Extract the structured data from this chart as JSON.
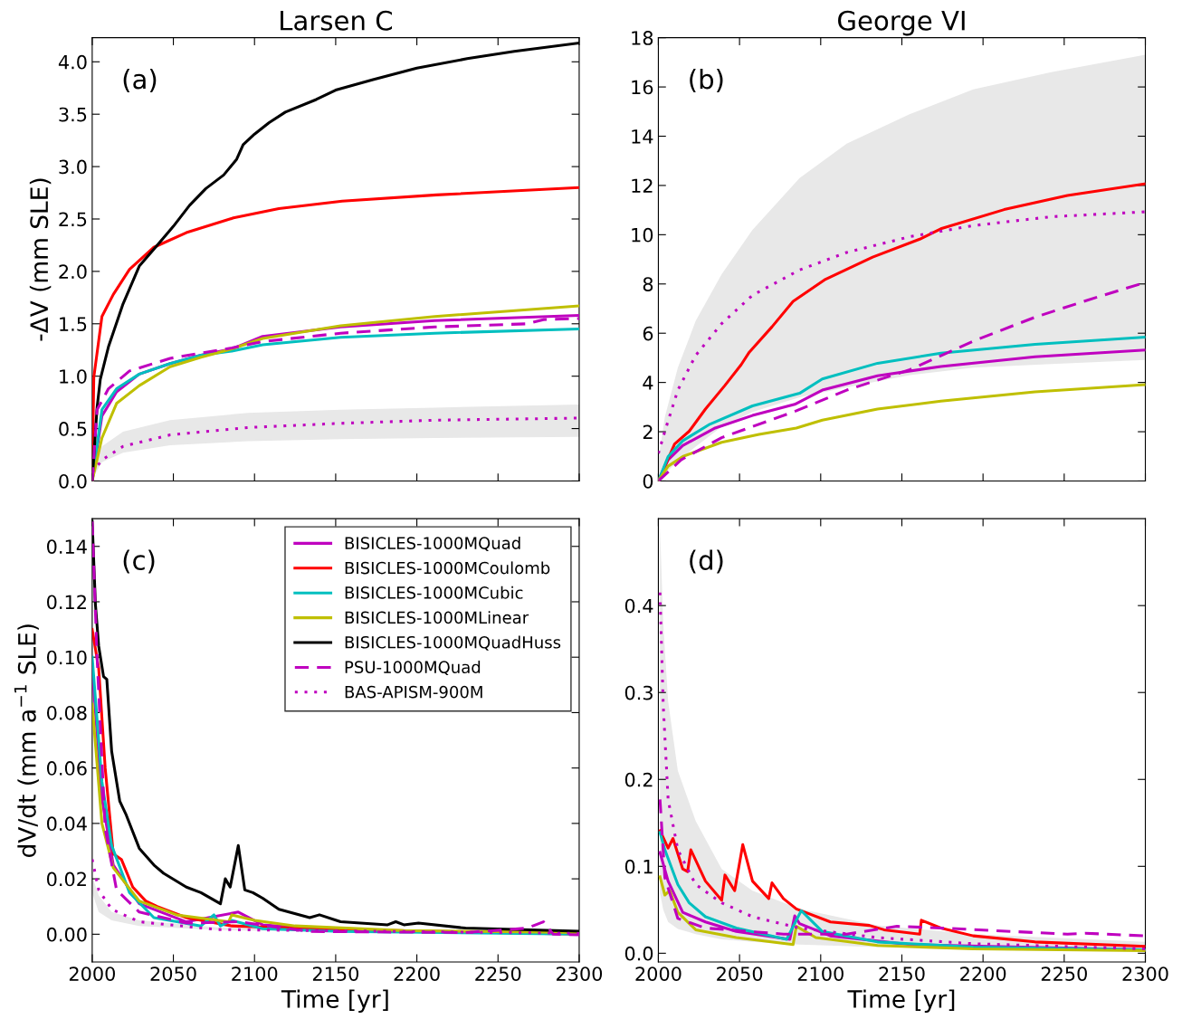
{
  "chart_data": [
    {
      "type": "line",
      "title": "Larsen C",
      "ylabel": "-ΔV (mm SLE)",
      "annotations": [
        "(a)"
      ],
      "xlim": [
        2000,
        2300
      ],
      "xticks": [
        {
          "value": 2000,
          "label": null
        },
        {
          "value": 2050,
          "label": null
        },
        {
          "value": 2100,
          "label": null
        },
        {
          "value": 2150,
          "label": null
        },
        {
          "value": 2200,
          "label": null
        },
        {
          "value": 2250,
          "label": null
        },
        {
          "value": 2300,
          "label": null
        }
      ],
      "ylim": [
        0,
        4.23
      ],
      "yticks": [
        {
          "value": 0,
          "label": "0.0"
        },
        0.5,
        {
          "value": 1,
          "label": "1.0"
        },
        1.5,
        {
          "value": 2,
          "label": "2.0"
        },
        2.5,
        {
          "value": 3,
          "label": "3.0"
        },
        3.5,
        {
          "value": 4,
          "label": "4.0"
        }
      ],
      "tick_labels": "y",
      "grid": false,
      "legend": false,
      "series": [
        {
          "color": "#bf00bf",
          "line_style": "solid",
          "x": [
            2000,
            2006,
            2015,
            2029,
            2048,
            2067,
            2086,
            2105,
            2153,
            2211,
            2300
          ],
          "values": [
            0,
            0.62,
            0.85,
            1.02,
            1.12,
            1.2,
            1.26,
            1.38,
            1.47,
            1.53,
            1.58
          ]
        },
        {
          "color": "#ff0000",
          "line_style": "solid",
          "x": [
            2000,
            2001,
            2006,
            2013,
            2023,
            2038,
            2058,
            2087,
            2115,
            2154,
            2212,
            2300
          ],
          "values": [
            0,
            0.99,
            1.57,
            1.78,
            2.02,
            2.23,
            2.37,
            2.51,
            2.6,
            2.67,
            2.73,
            2.8
          ]
        },
        {
          "color": "#00bfbf",
          "line_style": "solid",
          "x": [
            2000,
            2006,
            2015,
            2029,
            2048,
            2067,
            2086,
            2105,
            2153,
            2211,
            2300
          ],
          "values": [
            0,
            0.68,
            0.88,
            1.02,
            1.12,
            1.2,
            1.24,
            1.3,
            1.37,
            1.41,
            1.45
          ]
        },
        {
          "color": "#bfbf00",
          "line_style": "solid",
          "x": [
            2000,
            2006,
            2015,
            2029,
            2048,
            2067,
            2086,
            2105,
            2153,
            2211,
            2300
          ],
          "values": [
            0,
            0.41,
            0.74,
            0.91,
            1.09,
            1.18,
            1.26,
            1.36,
            1.48,
            1.57,
            1.67
          ]
        },
        {
          "color": "#000000",
          "line_style": "solid",
          "x": [
            2000,
            2003,
            2005,
            2010,
            2019,
            2029,
            2039,
            2050,
            2060,
            2070,
            2081,
            2089,
            2093,
            2100,
            2109,
            2119,
            2138,
            2150,
            2173,
            2200,
            2231,
            2260,
            2300
          ],
          "values": [
            0,
            0.7,
            0.97,
            1.28,
            1.69,
            2.05,
            2.23,
            2.43,
            2.63,
            2.79,
            2.92,
            3.07,
            3.21,
            3.31,
            3.42,
            3.52,
            3.64,
            3.73,
            3.83,
            3.94,
            4.03,
            4.1,
            4.18
          ]
        },
        {
          "color": "#bf00bf",
          "line_style": "dashed",
          "x": [
            2000,
            2003,
            2010,
            2023,
            2048,
            2086,
            2105,
            2153,
            2211,
            2268,
            2278,
            2300
          ],
          "values": [
            0,
            0.68,
            0.88,
            1.05,
            1.17,
            1.27,
            1.33,
            1.41,
            1.47,
            1.5,
            1.54,
            1.55
          ]
        },
        {
          "color": "#bf00bf",
          "line_style": "dotted",
          "x": [
            2000,
            2006,
            2019,
            2048,
            2096,
            2153,
            2211,
            2300
          ],
          "values": [
            0.08,
            0.2,
            0.33,
            0.44,
            0.51,
            0.55,
            0.58,
            0.6
          ],
          "lower": [
            0.02,
            0.18,
            0.27,
            0.34,
            0.38,
            0.4,
            0.41,
            0.42
          ],
          "upper": [
            0.05,
            0.33,
            0.47,
            0.58,
            0.65,
            0.68,
            0.7,
            0.73
          ]
        }
      ]
    },
    {
      "type": "line",
      "title": "George VI",
      "annotations": [
        "(b)"
      ],
      "xlim": [
        2000,
        2300
      ],
      "xticks": [
        {
          "value": 2000,
          "label": null
        },
        {
          "value": 2050,
          "label": null
        },
        {
          "value": 2100,
          "label": null
        },
        {
          "value": 2150,
          "label": null
        },
        {
          "value": 2200,
          "label": null
        },
        {
          "value": 2250,
          "label": null
        },
        {
          "value": 2300,
          "label": null
        }
      ],
      "ylim": [
        0,
        18
      ],
      "yticks": [
        0,
        2,
        4,
        6,
        8,
        10,
        12,
        14,
        16,
        18
      ],
      "tick_labels": "y",
      "grid": false,
      "legend": false,
      "series": [
        {
          "color": "#bf00bf",
          "line_style": "solid",
          "x": [
            2000,
            2006,
            2015,
            2035,
            2058,
            2084,
            2101,
            2135,
            2174,
            2232,
            2300
          ],
          "values": [
            0,
            0.86,
            1.44,
            2.15,
            2.66,
            3.11,
            3.69,
            4.27,
            4.65,
            5.04,
            5.32
          ]
        },
        {
          "color": "#ff0000",
          "line_style": "solid",
          "x": [
            2000,
            2010,
            2019,
            2029,
            2041,
            2051,
            2056,
            2070,
            2083,
            2103,
            2132,
            2161,
            2174,
            2213,
            2252,
            2300
          ],
          "values": [
            0,
            1.5,
            2.02,
            2.92,
            3.88,
            4.72,
            5.23,
            6.26,
            7.29,
            8.19,
            9.09,
            9.82,
            10.24,
            11.02,
            11.59,
            12.07
          ]
        },
        {
          "color": "#00bfbf",
          "line_style": "solid",
          "x": [
            2000,
            2006,
            2015,
            2031,
            2058,
            2087,
            2101,
            2135,
            2174,
            2232,
            2300
          ],
          "values": [
            0,
            0.99,
            1.63,
            2.28,
            3.05,
            3.56,
            4.14,
            4.78,
            5.19,
            5.55,
            5.84
          ]
        },
        {
          "color": "#bfbf00",
          "line_style": "solid",
          "x": [
            2000,
            2006,
            2015,
            2039,
            2062,
            2085,
            2101,
            2135,
            2174,
            2232,
            2300
          ],
          "values": [
            0,
            0.6,
            0.99,
            1.57,
            1.89,
            2.15,
            2.47,
            2.92,
            3.24,
            3.62,
            3.91
          ]
        },
        {
          "color": "#bf00bf",
          "line_style": "dashed",
          "x": [
            2000,
            2014,
            2039,
            2085,
            2116,
            2155,
            2194,
            2232,
            2271,
            2300
          ],
          "values": [
            0,
            0.86,
            1.76,
            2.85,
            3.69,
            4.52,
            5.68,
            6.65,
            7.48,
            8.06
          ]
        },
        {
          "color": "#bf00bf",
          "line_style": "dotted",
          "x": [
            2000,
            2004,
            2012,
            2023,
            2039,
            2058,
            2087,
            2116,
            2155,
            2194,
            2242,
            2300
          ],
          "values": [
            1.12,
            2.02,
            3.69,
            5.1,
            6.39,
            7.54,
            8.57,
            9.28,
            9.92,
            10.37,
            10.73,
            10.93
          ],
          "lower": [
            0,
            0.3,
            0.8,
            1.4,
            2.2,
            2.8,
            3.4,
            3.8,
            4.3,
            4.6,
            4.75,
            4.91
          ],
          "upper": [
            0.86,
            2.6,
            4.6,
            6.5,
            8.4,
            10.2,
            12.3,
            13.7,
            14.9,
            15.9,
            16.6,
            17.31
          ]
        }
      ]
    },
    {
      "type": "line",
      "xlabel": "Time [yr]",
      "ylabel": "dV/dt (mm a$^{−1}$ SLE)",
      "annotations": [
        "(c)"
      ],
      "xlim": [
        2000,
        2300
      ],
      "xticks": [
        2000,
        2050,
        2100,
        2150,
        2200,
        2250,
        2300
      ],
      "ylim": [
        -0.01,
        0.15
      ],
      "yticks": [
        {
          "value": 0,
          "label": "0.00"
        },
        {
          "value": 0.02,
          "label": "0.02"
        },
        {
          "value": 0.04,
          "label": "0.04"
        },
        {
          "value": 0.06,
          "label": "0.06"
        },
        {
          "value": 0.08,
          "label": "0.08"
        },
        {
          "value": 0.1,
          "label": "0.10"
        },
        {
          "value": 0.12,
          "label": "0.12"
        },
        {
          "value": 0.14,
          "label": "0.14"
        }
      ],
      "grid": false,
      "legend": "top right",
      "series": [
        {
          "name": "BISICLES-1000MQuad",
          "color": "#bf00bf",
          "line_style": "solid",
          "x": [
            2000,
            2006,
            2013,
            2029,
            2058,
            2090,
            2105,
            2153,
            2300
          ],
          "values": [
            0.096,
            0.049,
            0.025,
            0.011,
            0.0045,
            0.008,
            0.0034,
            0.0013,
            0.0006
          ]
        },
        {
          "name": "BISICLES-1000MCoulomb",
          "color": "#ff0000",
          "line_style": "solid",
          "x": [
            2000,
            2004,
            2008,
            2013,
            2018,
            2025,
            2033,
            2040,
            2058,
            2086,
            2134,
            2300
          ],
          "values": [
            0.11,
            0.096,
            0.06,
            0.029,
            0.027,
            0.017,
            0.012,
            0.01,
            0.006,
            0.003,
            0.002,
            0.0
          ]
        },
        {
          "name": "BISICLES-1000MCubic",
          "color": "#00bfbf",
          "line_style": "solid",
          "x": [
            2000,
            2006,
            2012,
            2023,
            2038,
            2067,
            2075,
            2079,
            2086,
            2105,
            2153,
            2300
          ],
          "values": [
            0.1,
            0.055,
            0.032,
            0.015,
            0.006,
            0.003,
            0.007,
            0.003,
            0.005,
            0.002,
            0.001,
            0.0
          ]
        },
        {
          "name": "BISICLES-1000MLinear",
          "color": "#bfbf00",
          "line_style": "solid",
          "x": [
            2000,
            2006,
            2013,
            2029,
            2052,
            2084,
            2086,
            2100,
            2125,
            2192,
            2300
          ],
          "values": [
            0.083,
            0.04,
            0.024,
            0.012,
            0.007,
            0.0045,
            0.007,
            0.005,
            0.003,
            0.0013,
            0.0006
          ]
        },
        {
          "name": "BISICLES-1000MQuadHuss",
          "color": "#000000",
          "line_style": "solid",
          "x": [
            2000,
            2002,
            2004,
            2007,
            2009,
            2012,
            2017,
            2021,
            2029,
            2038,
            2044,
            2058,
            2067,
            2079,
            2082,
            2085,
            2090,
            2094,
            2099,
            2105,
            2115,
            2134,
            2140,
            2153,
            2182,
            2187,
            2192,
            2201,
            2230,
            2300
          ],
          "values": [
            0.149,
            0.119,
            0.104,
            0.093,
            0.092,
            0.066,
            0.048,
            0.043,
            0.031,
            0.025,
            0.022,
            0.017,
            0.015,
            0.011,
            0.02,
            0.017,
            0.032,
            0.016,
            0.015,
            0.013,
            0.009,
            0.006,
            0.007,
            0.0045,
            0.0034,
            0.0045,
            0.0034,
            0.004,
            0.0022,
            0.0011
          ]
        },
        {
          "name": "PSU-1000MQuad",
          "color": "#bf00bf",
          "line_style": "dashed",
          "x": [
            2000,
            2003,
            2008,
            2015,
            2029,
            2058,
            2090,
            2134,
            2230,
            2268,
            2278,
            2284,
            2300
          ],
          "values": [
            0.149,
            0.1,
            0.038,
            0.016,
            0.008,
            0.004,
            0.0045,
            0.001,
            0.0006,
            0.0022,
            0.0045,
            0.0,
            -0.0002
          ]
        },
        {
          "name": "BAS-APISM-900M",
          "color": "#bf00bf",
          "line_style": "dotted",
          "x": [
            2000,
            2004,
            2012,
            2029,
            2077,
            2300
          ],
          "values": [
            0.027,
            0.016,
            0.009,
            0.0045,
            0.0017,
            0.0003
          ],
          "lower": [
            0.015,
            0.008,
            0.005,
            0.003,
            0.0015,
            0.0002
          ],
          "upper": [
            0.021,
            0.014,
            0.008,
            0.005,
            0.0025,
            0.0006
          ]
        }
      ]
    },
    {
      "type": "line",
      "xlabel": "Time [yr]",
      "annotations": [
        "(d)"
      ],
      "xlim": [
        2000,
        2300
      ],
      "xticks": [
        2000,
        2050,
        2100,
        2150,
        2200,
        2250,
        2300
      ],
      "ylim": [
        -0.01,
        0.5
      ],
      "yticks": [
        {
          "value": 0,
          "label": "0.0"
        },
        0.1,
        0.2,
        0.3,
        0.4
      ],
      "grid": false,
      "legend": false,
      "series": [
        {
          "color": "#bf00bf",
          "line_style": "solid",
          "x": [
            2001,
            2006,
            2015,
            2029,
            2048,
            2081,
            2084,
            2087,
            2106,
            2155,
            2300
          ],
          "values": [
            0.116,
            0.083,
            0.047,
            0.036,
            0.025,
            0.016,
            0.043,
            0.034,
            0.02,
            0.01,
            0.004
          ]
        },
        {
          "color": "#ff0000",
          "line_style": "solid",
          "x": [
            2001,
            2006,
            2009,
            2015,
            2018,
            2020,
            2029,
            2039,
            2041,
            2047,
            2052,
            2058,
            2068,
            2070,
            2077,
            2085,
            2106,
            2130,
            2139,
            2161,
            2162,
            2174,
            2194,
            2232,
            2300
          ],
          "values": [
            0.141,
            0.121,
            0.132,
            0.097,
            0.094,
            0.119,
            0.083,
            0.061,
            0.09,
            0.072,
            0.125,
            0.083,
            0.063,
            0.081,
            0.063,
            0.051,
            0.036,
            0.032,
            0.027,
            0.022,
            0.038,
            0.029,
            0.02,
            0.013,
            0.008
          ]
        },
        {
          "color": "#00bfbf",
          "line_style": "solid",
          "x": [
            2001,
            2004,
            2012,
            2019,
            2029,
            2048,
            2079,
            2088,
            2101,
            2135,
            2194,
            2300
          ],
          "values": [
            0.139,
            0.119,
            0.079,
            0.058,
            0.042,
            0.029,
            0.016,
            0.049,
            0.025,
            0.013,
            0.007,
            0.004
          ]
        },
        {
          "color": "#bfbf00",
          "line_style": "solid",
          "x": [
            2001,
            2004,
            2007,
            2012,
            2023,
            2048,
            2083,
            2085,
            2097,
            2135,
            2194,
            2300
          ],
          "values": [
            0.088,
            0.067,
            0.072,
            0.047,
            0.027,
            0.018,
            0.01,
            0.031,
            0.018,
            0.009,
            0.005,
            0.003
          ]
        },
        {
          "color": "#bf00bf",
          "line_style": "dashed",
          "x": [
            2001,
            2004,
            2012,
            2029,
            2077,
            2116,
            2147,
            2174,
            2252,
            2263,
            2300
          ],
          "values": [
            0.177,
            0.087,
            0.04,
            0.029,
            0.022,
            0.022,
            0.031,
            0.029,
            0.022,
            0.023,
            0.02
          ]
        },
        {
          "color": "#bf00bf",
          "line_style": "dotted",
          "x": [
            2001,
            2003,
            2006,
            2012,
            2023,
            2039,
            2058,
            2087,
            2135,
            2194,
            2300
          ],
          "values": [
            0.415,
            0.285,
            0.177,
            0.119,
            0.079,
            0.058,
            0.042,
            0.029,
            0.018,
            0.011,
            0.005
          ],
          "lower": [
            0.069,
            0.05,
            0.036,
            0.028,
            0.022,
            0.016,
            0.013,
            0.01,
            0.007,
            0.006,
            0.004
          ],
          "upper": [
            0.49,
            0.38,
            0.29,
            0.21,
            0.152,
            0.097,
            0.072,
            0.051,
            0.032,
            0.022,
            0.013
          ]
        }
      ]
    }
  ]
}
